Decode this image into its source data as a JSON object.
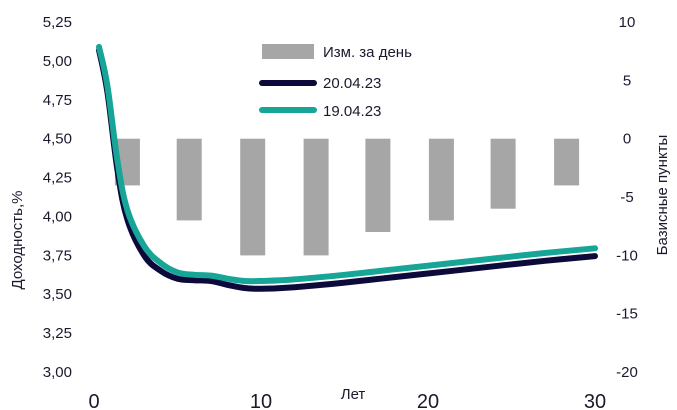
{
  "chart_data": {
    "type": "bar+line",
    "title": "",
    "xlabel": "Лет",
    "ylabel_left": "Доходность,%",
    "ylabel_right": "Базисные пункты",
    "xlim": [
      0,
      30
    ],
    "ylim_left": [
      3.0,
      5.25
    ],
    "ylim_right": [
      -20,
      10
    ],
    "x_ticks": [
      "0",
      "10",
      "20",
      "30"
    ],
    "y_left_ticks": [
      "3,00",
      "3,25",
      "3,50",
      "3,75",
      "4,00",
      "4,25",
      "4,50",
      "4,75",
      "5,00",
      "5,25"
    ],
    "y_right_ticks": [
      "-20",
      "-15",
      "-10",
      "-5",
      "0",
      "5",
      "10"
    ],
    "legend": [
      {
        "label": "Изм. за день",
        "kind": "bar",
        "color": "#a6a6a6"
      },
      {
        "label": "20.04.23",
        "kind": "line",
        "color": "#0b0a3a"
      },
      {
        "label": "19.04.23",
        "kind": "line",
        "color": "#17a597"
      }
    ],
    "legend_position": "top-center",
    "bars": {
      "name": "Изм. за день",
      "x": [
        2,
        5.7,
        9.5,
        13.3,
        17,
        20.8,
        24.5,
        28.3
      ],
      "values": [
        -4,
        -7,
        -10,
        -10,
        -8,
        -7,
        -6,
        -4
      ],
      "color": "#a6a6a6"
    },
    "series": [
      {
        "name": "20.04.23",
        "color": "#0b0a3a",
        "x": [
          0.3,
          0.8,
          1.4,
          2,
          3,
          4,
          5,
          6,
          7,
          8,
          9,
          10,
          12,
          15,
          18,
          21,
          24,
          27,
          30
        ],
        "values": [
          5.07,
          4.8,
          4.3,
          3.98,
          3.75,
          3.65,
          3.6,
          3.59,
          3.585,
          3.56,
          3.54,
          3.535,
          3.545,
          3.575,
          3.61,
          3.645,
          3.68,
          3.715,
          3.745
        ]
      },
      {
        "name": "19.04.23",
        "color": "#17a597",
        "x": [
          0.3,
          0.8,
          1.4,
          2,
          3,
          4,
          5,
          6,
          7,
          8,
          9,
          10,
          12,
          15,
          18,
          21,
          24,
          27,
          30
        ],
        "values": [
          5.09,
          4.84,
          4.36,
          4.04,
          3.81,
          3.7,
          3.64,
          3.625,
          3.62,
          3.6,
          3.585,
          3.585,
          3.595,
          3.625,
          3.66,
          3.695,
          3.73,
          3.765,
          3.795
        ]
      }
    ]
  }
}
